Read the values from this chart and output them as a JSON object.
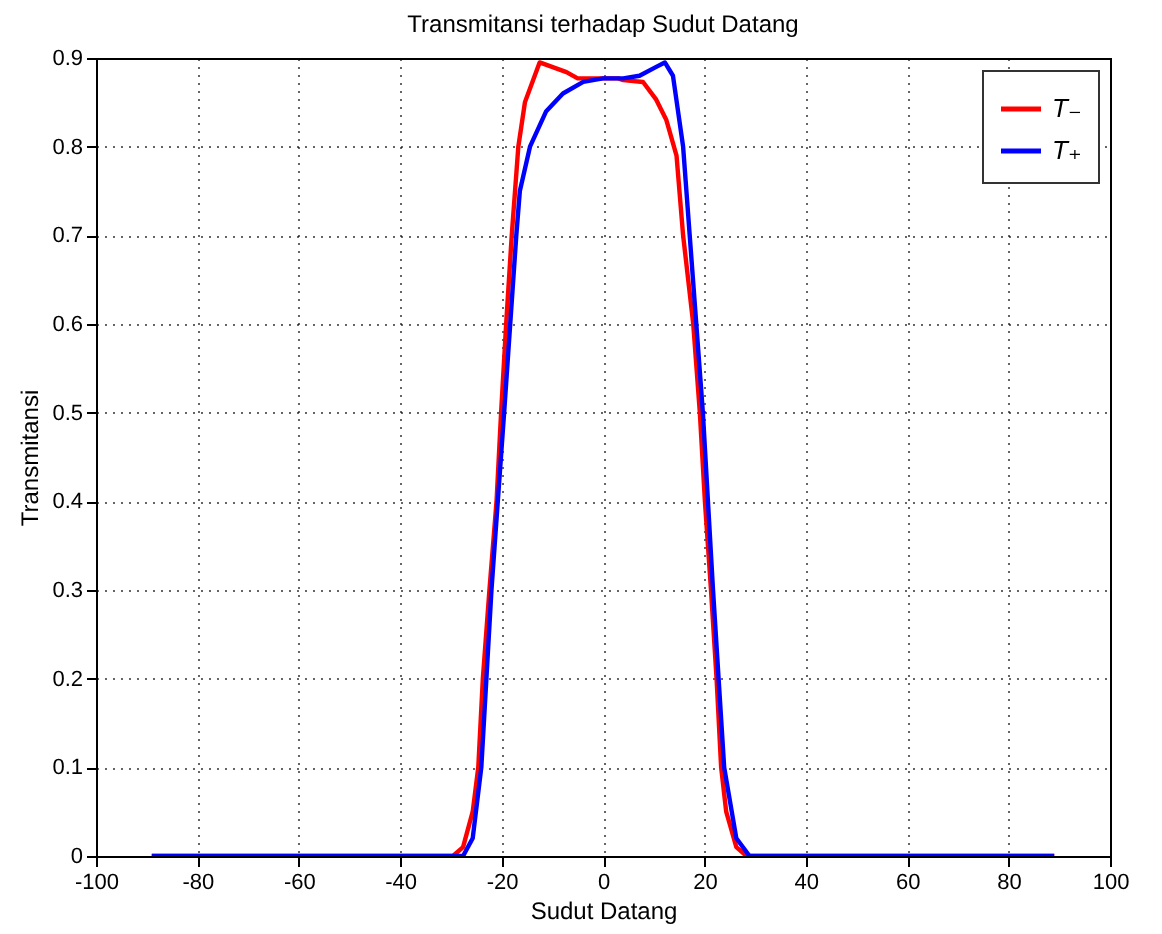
{
  "chart_data": {
    "type": "line",
    "title": "Transmitansi terhadap Sudut Datang",
    "xlabel": "Sudut Datang",
    "ylabel": "Transmitansi",
    "xlim": [
      -100,
      100
    ],
    "xticks": [
      -100,
      -80,
      -60,
      -40,
      -20,
      0,
      20,
      40,
      60,
      80,
      100
    ],
    "ylim": [
      0,
      0.9
    ],
    "yticks": [
      0,
      0.1,
      0.2,
      0.3,
      0.4,
      0.5,
      0.6,
      0.7,
      0.8,
      0.9
    ],
    "grid": true,
    "legend": "top right",
    "line_style": "solid",
    "marker": "none",
    "series": [
      {
        "name": "T₋",
        "color": "#ff0000",
        "x": [
          -89,
          -29.6,
          -27.6,
          -25.7,
          -24.6,
          -23.7,
          -22.4,
          -21,
          -20.1,
          -19.1,
          -18,
          -16.7,
          -15.4,
          -12.5,
          -7.2,
          -5,
          0,
          3,
          4,
          7.9,
          10.5,
          12.5,
          14.5,
          15.8,
          17.8,
          19.1,
          20.1,
          21.3,
          22.4,
          23.3,
          24.3,
          26.3,
          28.3,
          89
        ],
        "values": [
          0,
          0,
          0.01,
          0.05,
          0.1,
          0.2,
          0.3,
          0.4,
          0.5,
          0.6,
          0.7,
          0.8,
          0.85,
          0.895,
          0.884,
          0.877,
          0.877,
          0.877,
          0.875,
          0.873,
          0.853,
          0.83,
          0.79,
          0.7,
          0.6,
          0.5,
          0.4,
          0.3,
          0.2,
          0.1,
          0.05,
          0.01,
          0,
          0
        ]
      },
      {
        "name": "T₊",
        "color": "#0000ff",
        "x": [
          -89,
          -27.6,
          -25.7,
          -24,
          -22,
          -19.5,
          -17.1,
          -16.4,
          -14.4,
          -11.2,
          -7.9,
          -3.9,
          0,
          4,
          7.2,
          10.5,
          12.2,
          13.8,
          15.8,
          17.1,
          19.7,
          21.7,
          23.9,
          26.3,
          28.9,
          89
        ],
        "values": [
          0,
          0,
          0.02,
          0.1,
          0.3,
          0.5,
          0.7,
          0.75,
          0.8,
          0.84,
          0.86,
          0.873,
          0.877,
          0.877,
          0.88,
          0.89,
          0.895,
          0.88,
          0.8,
          0.7,
          0.5,
          0.3,
          0.1,
          0.02,
          0,
          0
        ]
      }
    ]
  }
}
